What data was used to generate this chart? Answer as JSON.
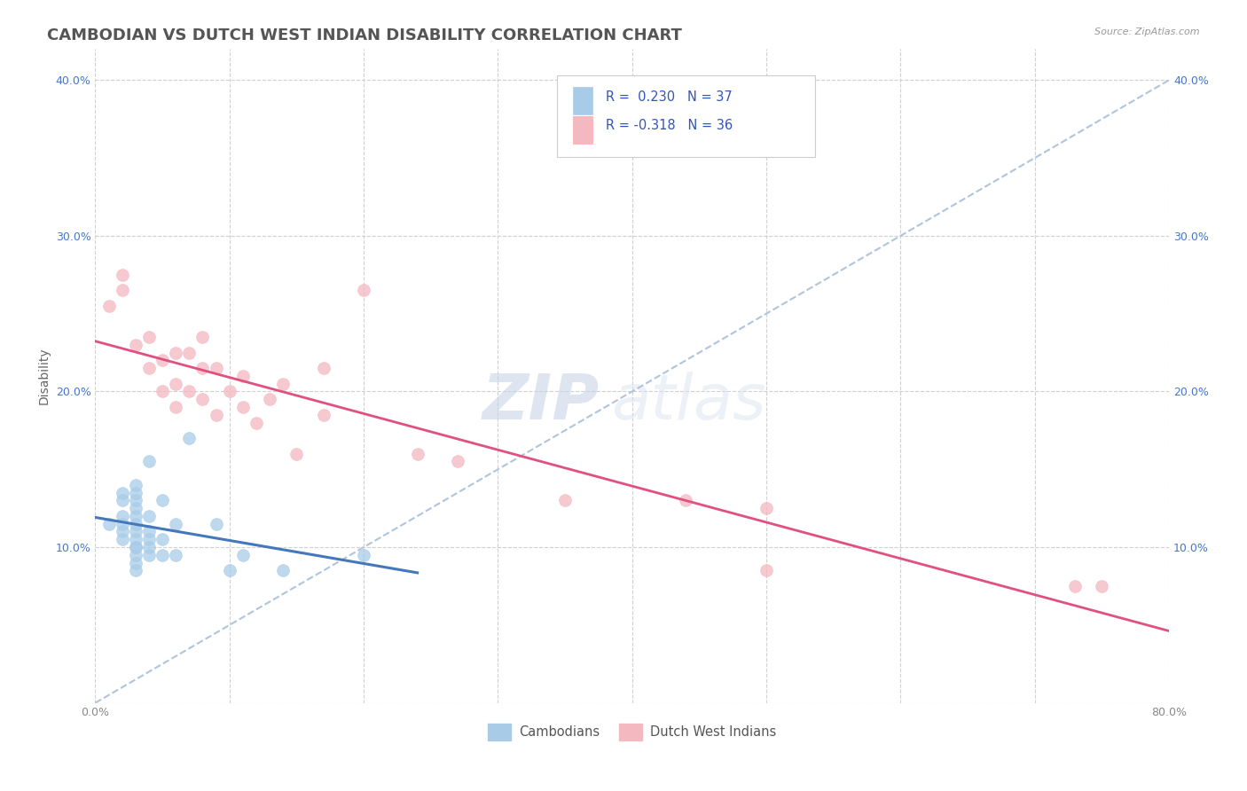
{
  "title": "CAMBODIAN VS DUTCH WEST INDIAN DISABILITY CORRELATION CHART",
  "source_text": "Source: ZipAtlas.com",
  "ylabel": "Disability",
  "x_min": 0.0,
  "x_max": 0.8,
  "y_min": 0.0,
  "y_max": 0.42,
  "R_cambodian": 0.23,
  "N_cambodian": 37,
  "R_dutch": -0.318,
  "N_dutch": 36,
  "cambodian_color": "#a8cce8",
  "dutch_color": "#f4b8c1",
  "trend_cambodian_color": "#4477bb",
  "trend_dutch_color": "#e05080",
  "trend_dashed_color": "#b0c4de",
  "watermark_zip": "ZIP",
  "watermark_atlas": "atlas",
  "cambodian_x": [
    0.01,
    0.02,
    0.02,
    0.02,
    0.02,
    0.02,
    0.02,
    0.03,
    0.03,
    0.03,
    0.03,
    0.03,
    0.03,
    0.03,
    0.03,
    0.03,
    0.03,
    0.03,
    0.03,
    0.03,
    0.04,
    0.04,
    0.04,
    0.04,
    0.04,
    0.04,
    0.05,
    0.05,
    0.05,
    0.06,
    0.06,
    0.07,
    0.09,
    0.1,
    0.11,
    0.14,
    0.2
  ],
  "cambodian_y": [
    0.115,
    0.105,
    0.11,
    0.115,
    0.12,
    0.13,
    0.135,
    0.085,
    0.09,
    0.095,
    0.1,
    0.1,
    0.105,
    0.11,
    0.115,
    0.12,
    0.125,
    0.13,
    0.135,
    0.14,
    0.095,
    0.1,
    0.105,
    0.11,
    0.12,
    0.155,
    0.095,
    0.105,
    0.13,
    0.095,
    0.115,
    0.17,
    0.115,
    0.085,
    0.095,
    0.085,
    0.095
  ],
  "dutch_x": [
    0.01,
    0.02,
    0.02,
    0.03,
    0.04,
    0.04,
    0.05,
    0.05,
    0.06,
    0.06,
    0.06,
    0.07,
    0.07,
    0.08,
    0.08,
    0.08,
    0.09,
    0.09,
    0.1,
    0.11,
    0.11,
    0.12,
    0.13,
    0.14,
    0.15,
    0.17,
    0.17,
    0.2,
    0.24,
    0.27,
    0.35,
    0.44,
    0.5,
    0.5,
    0.73,
    0.75
  ],
  "dutch_y": [
    0.255,
    0.265,
    0.275,
    0.23,
    0.215,
    0.235,
    0.2,
    0.22,
    0.19,
    0.205,
    0.225,
    0.2,
    0.225,
    0.195,
    0.215,
    0.235,
    0.185,
    0.215,
    0.2,
    0.19,
    0.21,
    0.18,
    0.195,
    0.205,
    0.16,
    0.185,
    0.215,
    0.265,
    0.16,
    0.155,
    0.13,
    0.13,
    0.085,
    0.125,
    0.075,
    0.075
  ],
  "background_color": "#ffffff",
  "grid_color": "#d0d0d0",
  "title_color": "#555555",
  "title_fontsize": 13,
  "tick_fontsize": 9,
  "tick_color_blue": "#4477cc",
  "tick_color_grey": "#888888"
}
